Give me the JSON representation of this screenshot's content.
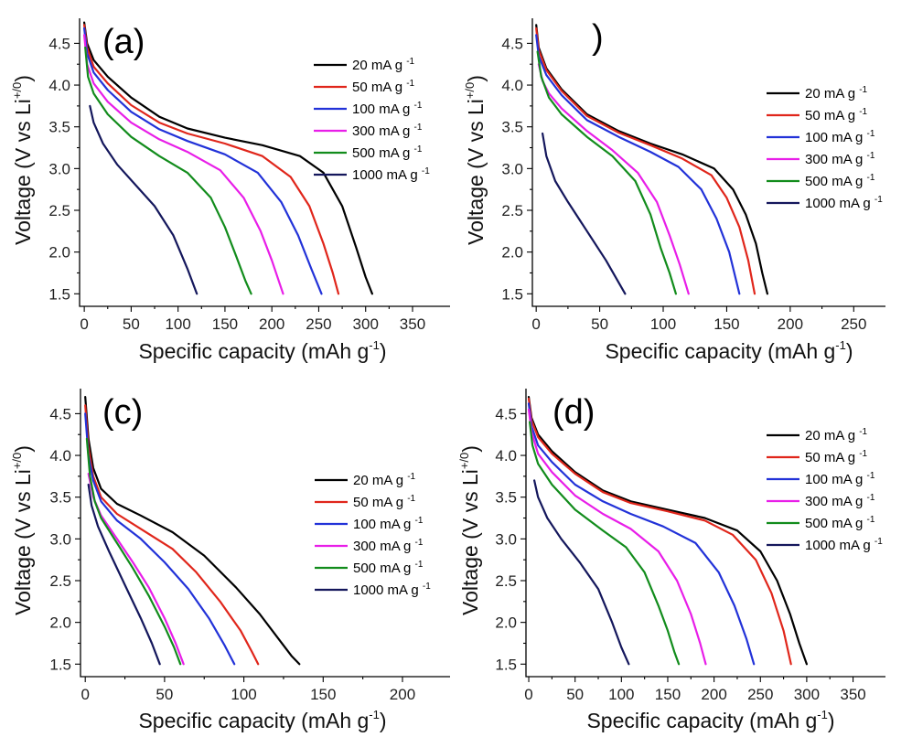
{
  "figure": {
    "description_tags": [
      "four-panel discharge curves"
    ]
  },
  "legend_suffix": "mA g",
  "legend_exponent": "-1",
  "colors": {
    "20": "#000000",
    "50": "#e0261b",
    "100": "#2232d8",
    "300": "#e81ee8",
    "500": "#128c1c",
    "1000": "#14175c"
  },
  "chart_data": [
    {
      "type": "line",
      "panel_label": "(a)",
      "title": "",
      "xlabel": "Specific capacity (mAh g",
      "xlabel_sup": "-1",
      "xlabel_end": ")",
      "ylabel": "Voltage (V vs Li",
      "ylabel_sup": "+/0",
      "ylabel_end": ")",
      "xlim": [
        -5,
        390
      ],
      "ylim": [
        1.35,
        4.8
      ],
      "xticks": [
        0,
        50,
        100,
        150,
        200,
        250,
        300,
        350
      ],
      "yticks": [
        1.5,
        2.0,
        2.5,
        3.0,
        3.5,
        4.0,
        4.5
      ],
      "legend_position": "right",
      "series": [
        {
          "name": "20 mA g-1",
          "rate": "20",
          "x": [
            0,
            3,
            10,
            25,
            50,
            80,
            110,
            150,
            190,
            230,
            255,
            275,
            290,
            300,
            307
          ],
          "y": [
            4.75,
            4.5,
            4.3,
            4.1,
            3.85,
            3.62,
            3.48,
            3.37,
            3.28,
            3.15,
            2.95,
            2.55,
            2.05,
            1.7,
            1.5
          ]
        },
        {
          "name": "50 mA g-1",
          "rate": "50",
          "x": [
            0,
            3,
            10,
            25,
            50,
            80,
            110,
            150,
            190,
            220,
            240,
            255,
            265,
            271
          ],
          "y": [
            4.72,
            4.45,
            4.22,
            4.02,
            3.76,
            3.55,
            3.42,
            3.3,
            3.15,
            2.9,
            2.55,
            2.1,
            1.75,
            1.5
          ]
        },
        {
          "name": "100 mA g-1",
          "rate": "100",
          "x": [
            0,
            3,
            10,
            25,
            50,
            80,
            110,
            150,
            185,
            210,
            228,
            242,
            253
          ],
          "y": [
            4.68,
            4.38,
            4.15,
            3.94,
            3.68,
            3.47,
            3.33,
            3.17,
            2.95,
            2.6,
            2.2,
            1.8,
            1.5
          ]
        },
        {
          "name": "300 mA g-1",
          "rate": "300",
          "x": [
            0,
            3,
            10,
            25,
            50,
            80,
            110,
            145,
            170,
            188,
            200,
            212
          ],
          "y": [
            4.6,
            4.25,
            4.02,
            3.8,
            3.55,
            3.35,
            3.2,
            2.98,
            2.65,
            2.25,
            1.9,
            1.5
          ]
        },
        {
          "name": "500 mA g-1",
          "rate": "500",
          "x": [
            1,
            4,
            10,
            25,
            50,
            80,
            110,
            135,
            150,
            162,
            172,
            178
          ],
          "y": [
            4.45,
            4.1,
            3.9,
            3.65,
            3.38,
            3.15,
            2.95,
            2.65,
            2.3,
            1.95,
            1.65,
            1.5
          ]
        },
        {
          "name": "1000 mA g-1",
          "rate": "1000",
          "x": [
            6,
            10,
            20,
            35,
            55,
            75,
            95,
            110,
            120
          ],
          "y": [
            3.75,
            3.55,
            3.3,
            3.05,
            2.8,
            2.55,
            2.2,
            1.8,
            1.5
          ]
        }
      ]
    },
    {
      "type": "line",
      "panel_label": ")",
      "title": "",
      "xlabel": "Specific capacity (mAh g",
      "xlabel_sup": "-1",
      "xlabel_end": ")",
      "ylabel": "Voltage (V vs Li",
      "ylabel_sup": "+/0",
      "ylabel_end": ")",
      "xlim": [
        -3,
        275
      ],
      "ylim": [
        1.35,
        4.8
      ],
      "xticks": [
        0,
        50,
        100,
        150,
        200,
        250
      ],
      "yticks": [
        1.5,
        2.0,
        2.5,
        3.0,
        3.5,
        4.0,
        4.5
      ],
      "legend_position": "right",
      "series": [
        {
          "name": "20 mA g-1",
          "rate": "20",
          "x": [
            0,
            2,
            8,
            20,
            40,
            65,
            90,
            115,
            140,
            155,
            165,
            173,
            178,
            182
          ],
          "y": [
            4.72,
            4.45,
            4.2,
            3.95,
            3.65,
            3.45,
            3.3,
            3.17,
            3.0,
            2.75,
            2.45,
            2.1,
            1.75,
            1.5
          ]
        },
        {
          "name": "50 mA g-1",
          "rate": "50",
          "x": [
            0,
            2,
            8,
            20,
            40,
            65,
            90,
            115,
            138,
            150,
            160,
            167,
            172
          ],
          "y": [
            4.68,
            4.42,
            4.18,
            3.93,
            3.63,
            3.43,
            3.28,
            3.12,
            2.92,
            2.65,
            2.3,
            1.9,
            1.5
          ]
        },
        {
          "name": "100 mA g-1",
          "rate": "100",
          "x": [
            0,
            2,
            8,
            20,
            40,
            65,
            90,
            112,
            130,
            142,
            152,
            160
          ],
          "y": [
            4.6,
            4.35,
            4.12,
            3.88,
            3.58,
            3.38,
            3.2,
            3.02,
            2.75,
            2.4,
            2.0,
            1.5
          ]
        },
        {
          "name": "300 mA g-1",
          "rate": "300",
          "x": [
            2,
            5,
            10,
            20,
            40,
            60,
            80,
            95,
            105,
            113,
            120
          ],
          "y": [
            4.25,
            4.05,
            3.9,
            3.72,
            3.45,
            3.22,
            2.95,
            2.6,
            2.2,
            1.85,
            1.5
          ]
        },
        {
          "name": "500 mA g-1",
          "rate": "500",
          "x": [
            1,
            4,
            10,
            20,
            40,
            60,
            78,
            90,
            98,
            105,
            110
          ],
          "y": [
            4.4,
            4.1,
            3.85,
            3.65,
            3.38,
            3.15,
            2.85,
            2.45,
            2.05,
            1.75,
            1.5
          ]
        },
        {
          "name": "1000 mA g-1",
          "rate": "1000",
          "x": [
            5,
            8,
            15,
            25,
            40,
            55,
            70
          ],
          "y": [
            3.42,
            3.15,
            2.85,
            2.6,
            2.25,
            1.9,
            1.5
          ]
        }
      ]
    },
    {
      "type": "line",
      "panel_label": "(c)",
      "title": "",
      "xlabel": "Specific capacity (mAh g",
      "xlabel_sup": "-1",
      "xlabel_end": ")",
      "ylabel": "Voltage (V vs Li",
      "ylabel_sup": "+/0",
      "ylabel_end": ")",
      "xlim": [
        -3,
        230
      ],
      "ylim": [
        1.35,
        4.8
      ],
      "xticks": [
        0,
        50,
        100,
        150,
        200
      ],
      "yticks": [
        1.5,
        2.0,
        2.5,
        3.0,
        3.5,
        4.0,
        4.5
      ],
      "legend_position": "right",
      "series": [
        {
          "name": "20 mA g-1",
          "rate": "20",
          "x": [
            0,
            2,
            5,
            10,
            20,
            35,
            55,
            75,
            95,
            110,
            122,
            130,
            135
          ],
          "y": [
            4.7,
            4.2,
            3.85,
            3.6,
            3.42,
            3.28,
            3.08,
            2.8,
            2.42,
            2.1,
            1.8,
            1.6,
            1.5
          ]
        },
        {
          "name": "50 mA g-1",
          "rate": "50",
          "x": [
            0,
            2,
            5,
            10,
            20,
            35,
            55,
            70,
            85,
            98,
            105,
            109
          ],
          "y": [
            4.6,
            4.1,
            3.75,
            3.5,
            3.3,
            3.12,
            2.88,
            2.6,
            2.25,
            1.9,
            1.65,
            1.5
          ]
        },
        {
          "name": "100 mA g-1",
          "rate": "100",
          "x": [
            0,
            2,
            5,
            10,
            20,
            35,
            50,
            65,
            78,
            88,
            94
          ],
          "y": [
            4.5,
            4.0,
            3.7,
            3.45,
            3.22,
            3.0,
            2.72,
            2.4,
            2.05,
            1.72,
            1.5
          ]
        },
        {
          "name": "300 mA g-1",
          "rate": "300",
          "x": [
            2,
            5,
            10,
            20,
            30,
            40,
            50,
            57,
            62
          ],
          "y": [
            3.78,
            3.5,
            3.28,
            3.0,
            2.72,
            2.42,
            2.05,
            1.75,
            1.5
          ]
        },
        {
          "name": "500 mA g-1",
          "rate": "500",
          "x": [
            1,
            3,
            6,
            10,
            20,
            30,
            40,
            50,
            56,
            60
          ],
          "y": [
            4.2,
            3.75,
            3.45,
            3.25,
            2.95,
            2.65,
            2.32,
            1.95,
            1.7,
            1.5
          ]
        },
        {
          "name": "1000 mA g-1",
          "rate": "1000",
          "x": [
            2,
            4,
            8,
            15,
            25,
            35,
            42,
            47
          ],
          "y": [
            3.65,
            3.4,
            3.15,
            2.85,
            2.45,
            2.05,
            1.75,
            1.5
          ]
        }
      ]
    },
    {
      "type": "line",
      "panel_label": "(d)",
      "title": "",
      "xlabel": "Specific capacity (mAh g",
      "xlabel_sup": "-1",
      "xlabel_end": ")",
      "ylabel": "Voltage (V vs Li",
      "ylabel_sup": "+/0",
      "ylabel_end": ")",
      "xlim": [
        -3,
        385
      ],
      "ylim": [
        1.35,
        4.8
      ],
      "xticks": [
        0,
        50,
        100,
        150,
        200,
        250,
        300,
        350
      ],
      "yticks": [
        1.5,
        2.0,
        2.5,
        3.0,
        3.5,
        4.0,
        4.5
      ],
      "legend_position": "right",
      "series": [
        {
          "name": "20 mA g-1",
          "rate": "20",
          "x": [
            0,
            3,
            10,
            25,
            50,
            80,
            110,
            150,
            190,
            225,
            250,
            268,
            282,
            292,
            300
          ],
          "y": [
            4.7,
            4.45,
            4.25,
            4.05,
            3.8,
            3.58,
            3.45,
            3.35,
            3.25,
            3.1,
            2.85,
            2.5,
            2.1,
            1.75,
            1.5
          ]
        },
        {
          "name": "50 mA g-1",
          "rate": "50",
          "x": [
            0,
            3,
            10,
            25,
            50,
            80,
            110,
            150,
            190,
            220,
            245,
            262,
            275,
            283
          ],
          "y": [
            4.68,
            4.42,
            4.22,
            4.02,
            3.78,
            3.56,
            3.43,
            3.33,
            3.22,
            3.05,
            2.75,
            2.35,
            1.9,
            1.5
          ]
        },
        {
          "name": "100 mA g-1",
          "rate": "100",
          "x": [
            0,
            3,
            10,
            25,
            50,
            80,
            110,
            145,
            180,
            205,
            222,
            235,
            243
          ],
          "y": [
            4.62,
            4.35,
            4.12,
            3.92,
            3.65,
            3.45,
            3.3,
            3.15,
            2.95,
            2.6,
            2.2,
            1.8,
            1.5
          ]
        },
        {
          "name": "300 mA g-1",
          "rate": "300",
          "x": [
            0,
            3,
            10,
            25,
            50,
            80,
            110,
            140,
            160,
            175,
            185,
            191
          ],
          "y": [
            4.55,
            4.28,
            4.02,
            3.8,
            3.52,
            3.3,
            3.12,
            2.85,
            2.5,
            2.1,
            1.75,
            1.5
          ]
        },
        {
          "name": "500 mA g-1",
          "rate": "500",
          "x": [
            1,
            4,
            10,
            25,
            50,
            80,
            105,
            125,
            140,
            150,
            157,
            162
          ],
          "y": [
            4.4,
            4.12,
            3.9,
            3.65,
            3.35,
            3.1,
            2.9,
            2.6,
            2.2,
            1.9,
            1.65,
            1.5
          ]
        },
        {
          "name": "1000 mA g-1",
          "rate": "1000",
          "x": [
            6,
            10,
            20,
            35,
            55,
            75,
            90,
            100,
            108
          ],
          "y": [
            3.7,
            3.5,
            3.25,
            3.0,
            2.72,
            2.4,
            2.0,
            1.7,
            1.5
          ]
        }
      ]
    }
  ]
}
